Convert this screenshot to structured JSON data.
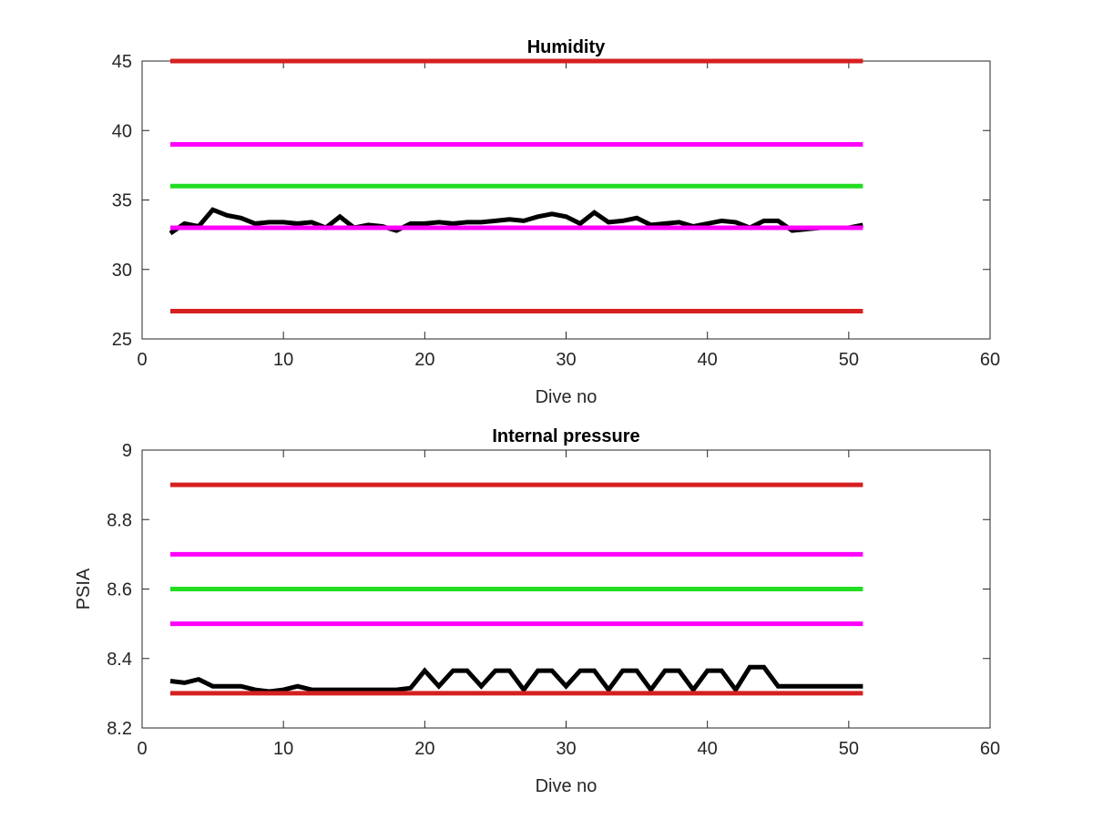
{
  "chart_data": [
    {
      "type": "line",
      "title": "Humidity",
      "xlabel": "Dive no",
      "ylabel": "",
      "xlim": [
        0,
        60
      ],
      "ylim": [
        25,
        45
      ],
      "xticks": [
        "0",
        "10",
        "20",
        "30",
        "40",
        "50",
        "60"
      ],
      "yticks": [
        "25",
        "30",
        "35",
        "40",
        "45"
      ],
      "grid": false,
      "series": [
        {
          "color": "#d62020",
          "x": [
            2,
            51
          ],
          "y": [
            45,
            45
          ]
        },
        {
          "color": "#ff00ff",
          "x": [
            2,
            51
          ],
          "y": [
            39,
            39
          ]
        },
        {
          "color": "#22dd22",
          "x": [
            2,
            51
          ],
          "y": [
            36,
            36
          ]
        },
        {
          "color": "#000000",
          "x": [
            2,
            3,
            4,
            5,
            6,
            7,
            8,
            9,
            10,
            11,
            12,
            13,
            14,
            15,
            16,
            17,
            18,
            19,
            20,
            21,
            22,
            23,
            24,
            25,
            26,
            27,
            28,
            29,
            30,
            31,
            32,
            33,
            34,
            35,
            36,
            37,
            38,
            39,
            40,
            41,
            42,
            43,
            44,
            45,
            46,
            47,
            48,
            49,
            50,
            51
          ],
          "y": [
            32.6,
            33.3,
            33.1,
            34.3,
            33.9,
            33.7,
            33.3,
            33.4,
            33.4,
            33.3,
            33.4,
            33.0,
            33.8,
            33.0,
            33.2,
            33.1,
            32.8,
            33.3,
            33.3,
            33.4,
            33.3,
            33.4,
            33.4,
            33.5,
            33.6,
            33.5,
            33.8,
            34.0,
            33.8,
            33.3,
            34.1,
            33.4,
            33.5,
            33.7,
            33.2,
            33.3,
            33.4,
            33.1,
            33.3,
            33.5,
            33.4,
            33.0,
            33.5,
            33.5,
            32.8,
            32.9,
            33.0,
            33.0,
            33.0,
            33.2
          ]
        },
        {
          "color": "#ff00ff",
          "x": [
            2,
            51
          ],
          "y": [
            33,
            33
          ]
        },
        {
          "color": "#d62020",
          "x": [
            2,
            51
          ],
          "y": [
            27,
            27
          ]
        }
      ]
    },
    {
      "type": "line",
      "title": "Internal pressure",
      "xlabel": "Dive no",
      "ylabel": "PSIA",
      "xlim": [
        0,
        60
      ],
      "ylim": [
        8.2,
        9
      ],
      "xticks": [
        "0",
        "10",
        "20",
        "30",
        "40",
        "50",
        "60"
      ],
      "yticks": [
        "8.2",
        "8.4",
        "8.6",
        "8.8",
        "9"
      ],
      "grid": false,
      "series": [
        {
          "color": "#d62020",
          "x": [
            2,
            51
          ],
          "y": [
            8.9,
            8.9
          ]
        },
        {
          "color": "#ff00ff",
          "x": [
            2,
            51
          ],
          "y": [
            8.7,
            8.7
          ]
        },
        {
          "color": "#22dd22",
          "x": [
            2,
            51
          ],
          "y": [
            8.6,
            8.6
          ]
        },
        {
          "color": "#ff00ff",
          "x": [
            2,
            51
          ],
          "y": [
            8.5,
            8.5
          ]
        },
        {
          "color": "#000000",
          "x": [
            2,
            3,
            4,
            5,
            6,
            7,
            8,
            9,
            10,
            11,
            12,
            13,
            14,
            15,
            16,
            17,
            18,
            19,
            20,
            21,
            22,
            23,
            24,
            25,
            26,
            27,
            28,
            29,
            30,
            31,
            32,
            33,
            34,
            35,
            36,
            37,
            38,
            39,
            40,
            41,
            42,
            43,
            44,
            45,
            46,
            47,
            48,
            49,
            50,
            51
          ],
          "y": [
            8.335,
            8.33,
            8.34,
            8.32,
            8.32,
            8.32,
            8.31,
            8.305,
            8.31,
            8.32,
            8.31,
            8.31,
            8.31,
            8.31,
            8.31,
            8.31,
            8.31,
            8.315,
            8.365,
            8.32,
            8.365,
            8.365,
            8.32,
            8.365,
            8.365,
            8.31,
            8.365,
            8.365,
            8.32,
            8.365,
            8.365,
            8.31,
            8.365,
            8.365,
            8.31,
            8.365,
            8.365,
            8.31,
            8.365,
            8.365,
            8.31,
            8.375,
            8.375,
            8.32,
            8.32,
            8.32,
            8.32,
            8.32,
            8.32,
            8.32
          ]
        },
        {
          "color": "#d62020",
          "x": [
            2,
            51
          ],
          "y": [
            8.3,
            8.3
          ]
        }
      ]
    }
  ]
}
